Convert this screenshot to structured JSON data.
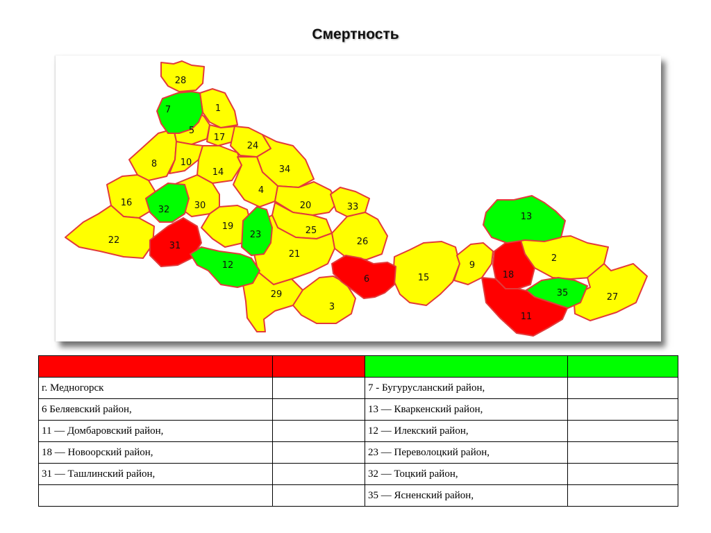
{
  "title": "Смертность",
  "colors": {
    "high": "#ff0000",
    "low": "#00ff00",
    "neutral": "#ffff00",
    "border": "#e23a3a"
  },
  "map": {
    "regions": [
      {
        "id": "28",
        "category": "neutral"
      },
      {
        "id": "7",
        "category": "low"
      },
      {
        "id": "1",
        "category": "neutral"
      },
      {
        "id": "5",
        "category": "neutral"
      },
      {
        "id": "17",
        "category": "neutral"
      },
      {
        "id": "24",
        "category": "neutral"
      },
      {
        "id": "8",
        "category": "neutral"
      },
      {
        "id": "10",
        "category": "neutral"
      },
      {
        "id": "14",
        "category": "neutral"
      },
      {
        "id": "34",
        "category": "neutral"
      },
      {
        "id": "4",
        "category": "neutral"
      },
      {
        "id": "16",
        "category": "neutral"
      },
      {
        "id": "32",
        "category": "low"
      },
      {
        "id": "30",
        "category": "neutral"
      },
      {
        "id": "20",
        "category": "neutral"
      },
      {
        "id": "33",
        "category": "neutral"
      },
      {
        "id": "19",
        "category": "neutral"
      },
      {
        "id": "23",
        "category": "low"
      },
      {
        "id": "25",
        "category": "neutral"
      },
      {
        "id": "22",
        "category": "neutral"
      },
      {
        "id": "31",
        "category": "high"
      },
      {
        "id": "26",
        "category": "neutral"
      },
      {
        "id": "21",
        "category": "neutral"
      },
      {
        "id": "12",
        "category": "low"
      },
      {
        "id": "6",
        "category": "high"
      },
      {
        "id": "15",
        "category": "neutral"
      },
      {
        "id": "29",
        "category": "neutral"
      },
      {
        "id": "3",
        "category": "neutral"
      },
      {
        "id": "13",
        "category": "low"
      },
      {
        "id": "9",
        "category": "neutral"
      },
      {
        "id": "18",
        "category": "high"
      },
      {
        "id": "2",
        "category": "neutral"
      },
      {
        "id": "35",
        "category": "low"
      },
      {
        "id": "27",
        "category": "neutral"
      },
      {
        "id": "11",
        "category": "high"
      }
    ]
  },
  "legend": {
    "rows": [
      [
        "г. Медногорск",
        "",
        "7 -  Бугурусланский район,",
        ""
      ],
      [
        "6   Беляевский район,",
        "",
        "13 — Кваркенский район,",
        ""
      ],
      [
        "11 — Домбаровский район,",
        "",
        " 12 — Илекский район,",
        ""
      ],
      [
        "18 — Новоорский район,",
        "",
        "23 — Переволоцкий район,",
        ""
      ],
      [
        "31 — Ташлинский район,",
        "",
        "32 — Тоцкий район,",
        ""
      ],
      [
        "",
        "",
        " 35 — Ясненский район,",
        ""
      ]
    ]
  }
}
